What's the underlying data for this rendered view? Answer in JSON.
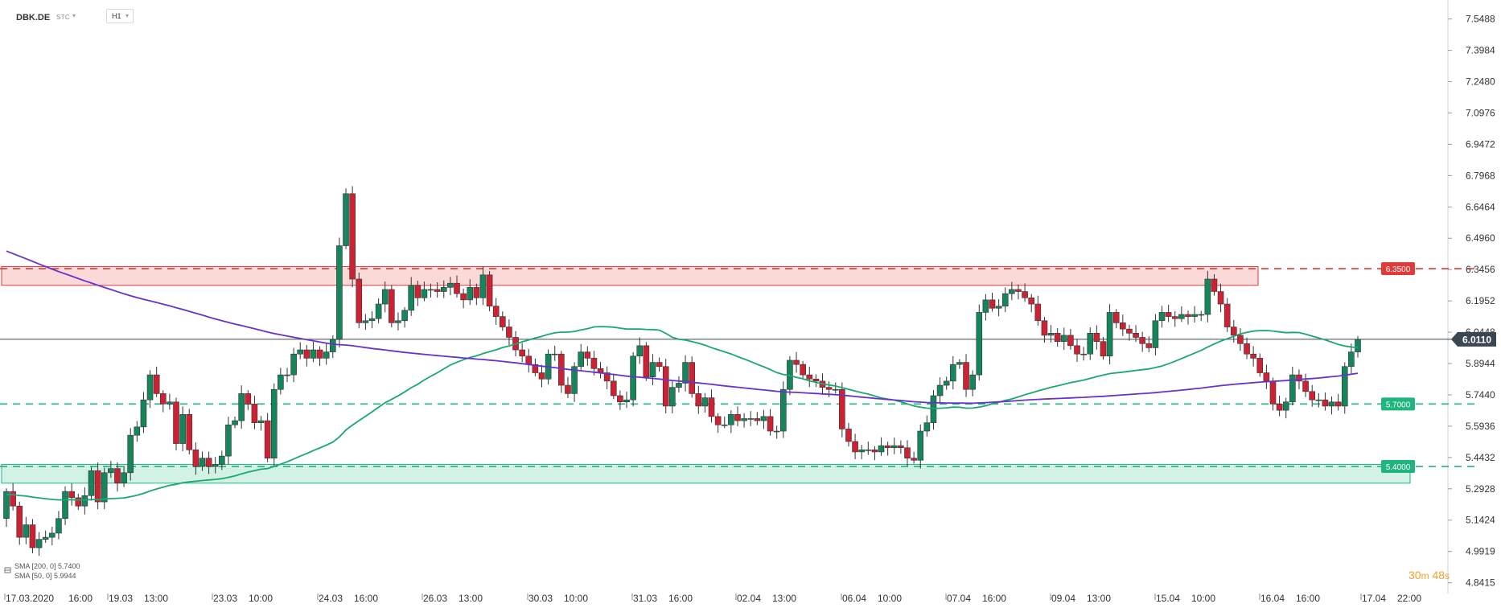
{
  "header": {
    "symbol": "DBK.DE",
    "source": "STC",
    "timeframe": "H1"
  },
  "legend": [
    "SMA [200, 0] 5.7400",
    "SMA [50, 0] 5.9944"
  ],
  "timer": {
    "minutes": "30",
    "minutes_unit": "m",
    "seconds": "48",
    "seconds_unit": "s"
  },
  "colors": {
    "up": "#16855b",
    "down": "#cc2233",
    "resistance": "#e03a3a",
    "support": "#1fb57d",
    "sma200": "#6633cc",
    "sma50": "#1aa86e",
    "current": "#3a4652"
  },
  "chart_data": {
    "type": "candlestick",
    "title": "",
    "ylim": [
      4.79,
      7.64
    ],
    "y_ticks": [
      "7.5488",
      "7.3984",
      "7.2480",
      "7.0976",
      "6.9472",
      "6.7968",
      "6.6464",
      "6.4960",
      "6.3456",
      "6.1952",
      "6.0448",
      "5.8944",
      "5.7440",
      "5.5936",
      "5.4432",
      "5.2928",
      "5.1424",
      "4.9919",
      "4.8415"
    ],
    "x_ticks": [
      "17.03.2020",
      "16:00",
      "19.03",
      "13:00",
      "23.03",
      "10:00",
      "24.03",
      "16:00",
      "26.03",
      "13:00",
      "30.03",
      "10:00",
      "31.03",
      "16:00",
      "02.04",
      "13:00",
      "06.04",
      "10:00",
      "07.04",
      "16:00",
      "09.04",
      "13:00",
      "15.04",
      "10:00",
      "16.04",
      "16:00",
      "17.04",
      "22:00"
    ],
    "current_price": "6.0110",
    "levels": [
      {
        "price": 6.35,
        "label": "6.3500",
        "kind": "resistance"
      },
      {
        "price": 5.7,
        "label": "5.7000",
        "kind": "support"
      },
      {
        "price": 5.4,
        "label": "5.4000",
        "kind": "support"
      }
    ],
    "zones": [
      {
        "from": 6.27,
        "to": 6.36,
        "kind": "resistance"
      },
      {
        "from": 5.32,
        "to": 5.41,
        "kind": "support"
      }
    ],
    "candles_open": [
      5.15,
      5.28,
      5.21,
      5.06,
      5.12,
      5.01,
      5.05,
      5.06,
      5.08,
      5.15,
      5.28,
      5.25,
      5.21,
      5.26,
      5.38,
      5.23,
      5.37,
      5.39,
      5.32,
      5.37,
      5.55,
      5.59,
      5.72,
      5.84,
      5.75,
      5.7,
      5.71,
      5.51,
      5.65,
      5.48,
      5.4,
      5.44,
      5.4,
      5.41,
      5.45,
      5.6,
      5.62,
      5.75,
      5.7,
      5.61,
      5.62,
      5.44,
      5.77,
      5.84,
      5.84,
      5.94,
      5.96,
      5.92,
      5.96,
      5.92,
      5.95,
      6.01,
      6.46,
      6.71,
      6.3,
      6.09,
      6.1,
      6.11,
      6.18,
      6.25,
      6.09,
      6.1,
      6.15,
      6.27,
      6.21,
      6.25,
      6.25,
      6.24,
      6.26,
      6.28,
      6.23,
      6.2,
      6.26,
      6.21,
      6.32,
      6.17,
      6.12,
      6.07,
      6.02,
      5.96,
      5.93,
      5.89,
      5.85,
      5.82,
      5.94,
      5.94,
      5.79,
      5.75,
      5.88,
      5.95,
      5.92,
      5.87,
      5.85,
      5.81,
      5.74,
      5.71,
      5.72,
      5.93,
      5.98,
      5.83,
      5.9,
      5.88,
      5.69,
      5.78,
      5.8,
      5.9,
      5.75,
      5.69,
      5.73,
      5.64,
      5.6,
      5.6,
      5.65,
      5.62,
      5.63,
      5.63,
      5.62,
      5.64,
      5.57,
      5.57,
      5.77,
      5.91,
      5.89,
      5.84,
      5.82,
      5.81,
      5.78,
      5.77,
      5.77,
      5.58,
      5.52,
      5.47,
      5.48,
      5.48,
      5.47,
      5.5,
      5.49,
      5.5,
      5.49,
      5.44,
      5.43,
      5.57,
      5.61,
      5.74,
      5.79,
      5.81,
      5.89,
      5.9,
      5.77,
      5.84,
      6.14,
      6.2,
      6.16,
      6.17,
      6.23,
      6.25,
      6.24,
      6.21,
      6.18,
      6.1,
      6.03,
      6.04,
      6.0,
      6.03,
      5.98,
      5.94,
      5.94,
      6.04,
      6.0,
      5.93,
      6.14,
      6.09,
      6.06,
      6.04,
      6.02,
      5.99,
      5.97,
      6.1,
      6.14,
      6.12,
      6.11,
      6.13,
      6.12,
      6.13,
      6.13,
      6.3,
      6.24,
      6.18,
      6.07,
      6.03,
      5.99,
      5.94,
      5.92,
      5.85,
      5.81,
      5.7,
      5.67,
      5.71,
      5.84,
      5.81,
      5.76,
      5.72,
      5.72,
      5.69,
      5.71,
      5.69,
      5.88,
      5.95
    ],
    "candles_close": [
      5.28,
      5.21,
      5.06,
      5.12,
      5.01,
      5.05,
      5.06,
      5.08,
      5.15,
      5.28,
      5.25,
      5.21,
      5.26,
      5.38,
      5.23,
      5.37,
      5.39,
      5.32,
      5.37,
      5.55,
      5.59,
      5.72,
      5.84,
      5.75,
      5.7,
      5.71,
      5.51,
      5.65,
      5.48,
      5.4,
      5.44,
      5.4,
      5.41,
      5.45,
      5.6,
      5.62,
      5.75,
      5.7,
      5.61,
      5.62,
      5.44,
      5.77,
      5.84,
      5.84,
      5.94,
      5.96,
      5.92,
      5.96,
      5.92,
      5.95,
      6.01,
      6.46,
      6.71,
      6.3,
      6.09,
      6.1,
      6.11,
      6.18,
      6.25,
      6.09,
      6.1,
      6.15,
      6.27,
      6.21,
      6.25,
      6.25,
      6.24,
      6.26,
      6.28,
      6.23,
      6.2,
      6.26,
      6.21,
      6.32,
      6.17,
      6.12,
      6.07,
      6.02,
      5.96,
      5.93,
      5.89,
      5.85,
      5.82,
      5.94,
      5.94,
      5.79,
      5.75,
      5.88,
      5.95,
      5.92,
      5.87,
      5.85,
      5.81,
      5.74,
      5.71,
      5.72,
      5.93,
      5.98,
      5.83,
      5.9,
      5.88,
      5.69,
      5.78,
      5.8,
      5.9,
      5.75,
      5.69,
      5.73,
      5.64,
      5.6,
      5.6,
      5.65,
      5.62,
      5.63,
      5.63,
      5.62,
      5.64,
      5.57,
      5.57,
      5.77,
      5.91,
      5.89,
      5.84,
      5.82,
      5.81,
      5.78,
      5.77,
      5.77,
      5.58,
      5.52,
      5.47,
      5.48,
      5.48,
      5.47,
      5.5,
      5.49,
      5.5,
      5.49,
      5.44,
      5.43,
      5.57,
      5.61,
      5.74,
      5.79,
      5.81,
      5.89,
      5.9,
      5.77,
      5.84,
      6.14,
      6.2,
      6.16,
      6.17,
      6.23,
      6.25,
      6.24,
      6.21,
      6.18,
      6.1,
      6.03,
      6.04,
      6.0,
      6.03,
      5.98,
      5.94,
      5.94,
      6.04,
      6.0,
      5.93,
      6.14,
      6.09,
      6.06,
      6.04,
      6.02,
      5.99,
      5.97,
      6.1,
      6.14,
      6.12,
      6.11,
      6.13,
      6.12,
      6.13,
      6.13,
      6.3,
      6.24,
      6.18,
      6.07,
      6.03,
      5.99,
      5.94,
      5.92,
      5.85,
      5.81,
      5.7,
      5.67,
      5.71,
      5.84,
      5.81,
      5.76,
      5.72,
      5.72,
      5.69,
      5.71,
      5.69,
      5.88,
      5.95,
      6.01
    ]
  }
}
